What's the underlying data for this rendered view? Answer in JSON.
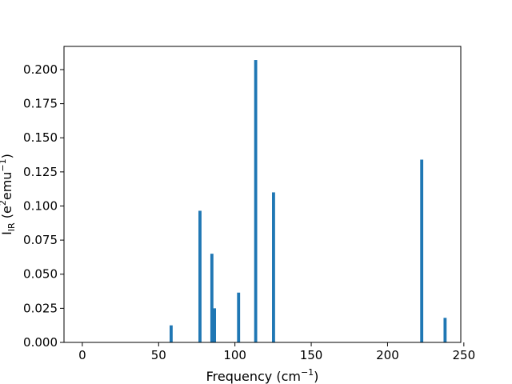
{
  "chart_data": {
    "type": "bar",
    "xlabel": "Frequency (cm",
    "xlabel_sup": "−1",
    "xlabel_end": ")",
    "ylabel_main": "I",
    "ylabel_sub": "IR",
    "ylabel_rest": " (e",
    "ylabel_sup1": "2",
    "ylabel_mid": "emu",
    "ylabel_sup2": "−1",
    "ylabel_end": ")",
    "xlim": [
      -12,
      248
    ],
    "ylim": [
      0,
      0.217
    ],
    "xticks": [
      0,
      50,
      100,
      150,
      200,
      250
    ],
    "xtick_labels": [
      "0",
      "50",
      "100",
      "150",
      "200",
      "250"
    ],
    "yticks": [
      0,
      0.025,
      0.05,
      0.075,
      0.1,
      0.125,
      0.15,
      0.175,
      0.2
    ],
    "ytick_labels": [
      "0.000",
      "0.025",
      "0.050",
      "0.075",
      "0.100",
      "0.125",
      "0.150",
      "0.175",
      "0.200"
    ],
    "grid": false,
    "bar_width": 2,
    "bar_color": "#1f77b4",
    "bars": [
      {
        "x": 58.2,
        "y": 0.0125
      },
      {
        "x": 77.1,
        "y": 0.0965
      },
      {
        "x": 84.9,
        "y": 0.065
      },
      {
        "x": 86.6,
        "y": 0.025
      },
      {
        "x": 102.4,
        "y": 0.0365
      },
      {
        "x": 113.6,
        "y": 0.207
      },
      {
        "x": 125.3,
        "y": 0.11
      },
      {
        "x": 222.4,
        "y": 0.134
      },
      {
        "x": 237.7,
        "y": 0.018
      }
    ]
  }
}
